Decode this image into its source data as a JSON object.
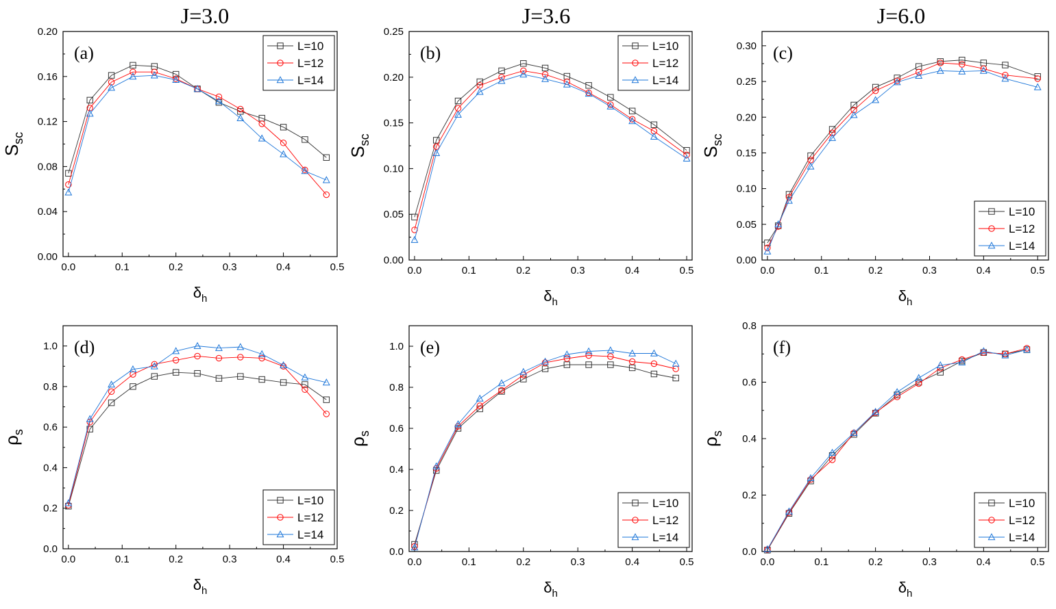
{
  "column_titles": [
    "J=3.0",
    "J=3.6",
    "J=6.0"
  ],
  "colors": {
    "L10": "#333333",
    "L12": "#ff0000",
    "L14": "#1a74d8"
  },
  "chart_data": [
    {
      "type": "line",
      "panel": "(a)",
      "title": "J=3.0",
      "xlabel_main": "δ",
      "xlabel_sub": "h",
      "ylabel_main": "S",
      "ylabel_sub": "sc",
      "xlim": [
        -0.01,
        0.5
      ],
      "ylim": [
        0,
        0.2
      ],
      "xticks": [
        0.0,
        0.1,
        0.2,
        0.3,
        0.4,
        0.5
      ],
      "xtick_labels": [
        "0.0",
        "0.1",
        "0.2",
        "0.3",
        "0.4",
        "0.5"
      ],
      "yticks": [
        0,
        0.04,
        0.08,
        0.12,
        0.16,
        0.2
      ],
      "ytick_labels": [
        "0.00",
        "0.04",
        "0.08",
        "0.12",
        "0.16",
        "0.20"
      ],
      "legend_position": "top-right",
      "x": [
        0.0,
        0.04,
        0.08,
        0.12,
        0.16,
        0.2,
        0.24,
        0.28,
        0.32,
        0.36,
        0.4,
        0.44,
        0.48
      ],
      "series": [
        {
          "name": "L=10",
          "marker": "square",
          "values": [
            0.074,
            0.139,
            0.161,
            0.17,
            0.169,
            0.162,
            0.149,
            0.137,
            0.129,
            0.123,
            0.115,
            0.104,
            0.088
          ]
        },
        {
          "name": "L=12",
          "marker": "circle",
          "values": [
            0.064,
            0.132,
            0.155,
            0.164,
            0.164,
            0.158,
            0.149,
            0.142,
            0.131,
            0.118,
            0.101,
            0.077,
            0.055
          ]
        },
        {
          "name": "L=14",
          "marker": "triangle",
          "values": [
            0.057,
            0.127,
            0.15,
            0.16,
            0.161,
            0.157,
            0.149,
            0.138,
            0.123,
            0.105,
            0.091,
            0.076,
            0.068
          ]
        }
      ]
    },
    {
      "type": "line",
      "panel": "(b)",
      "title": "J=3.6",
      "xlabel_main": "δ",
      "xlabel_sub": "h",
      "ylabel_main": "S",
      "ylabel_sub": "sc",
      "xlim": [
        -0.01,
        0.51
      ],
      "ylim": [
        0,
        0.25
      ],
      "xticks": [
        0.0,
        0.1,
        0.2,
        0.3,
        0.4,
        0.5
      ],
      "xtick_labels": [
        "0.0",
        "0.1",
        "0.2",
        "0.3",
        "0.4",
        "0.5"
      ],
      "yticks": [
        0,
        0.05,
        0.1,
        0.15,
        0.2,
        0.25
      ],
      "ytick_labels": [
        "0.00",
        "0.05",
        "0.10",
        "0.15",
        "0.20",
        "0.25"
      ],
      "legend_position": "top-right",
      "x": [
        0.0,
        0.04,
        0.08,
        0.12,
        0.16,
        0.2,
        0.24,
        0.28,
        0.32,
        0.36,
        0.4,
        0.44,
        0.5
      ],
      "series": [
        {
          "name": "L=10",
          "marker": "square",
          "values": [
            0.047,
            0.131,
            0.174,
            0.195,
            0.207,
            0.215,
            0.21,
            0.201,
            0.191,
            0.178,
            0.163,
            0.148,
            0.12
          ]
        },
        {
          "name": "L=12",
          "marker": "circle",
          "values": [
            0.033,
            0.124,
            0.166,
            0.191,
            0.2,
            0.207,
            0.203,
            0.195,
            0.183,
            0.17,
            0.154,
            0.141,
            0.115
          ]
        },
        {
          "name": "L=14",
          "marker": "triangle",
          "values": [
            0.022,
            0.117,
            0.159,
            0.184,
            0.196,
            0.203,
            0.198,
            0.192,
            0.182,
            0.168,
            0.152,
            0.135,
            0.111
          ]
        }
      ]
    },
    {
      "type": "line",
      "panel": "(c)",
      "title": "J=6.0",
      "xlabel_main": "δ",
      "xlabel_sub": "h",
      "ylabel_main": "S",
      "ylabel_sub": "sc",
      "xlim": [
        -0.01,
        0.52
      ],
      "ylim": [
        0,
        0.32
      ],
      "xticks": [
        0.0,
        0.1,
        0.2,
        0.3,
        0.4,
        0.5
      ],
      "xtick_labels": [
        "0.0",
        "0.1",
        "0.2",
        "0.3",
        "0.4",
        "0.5"
      ],
      "yticks": [
        0,
        0.05,
        0.1,
        0.15,
        0.2,
        0.25,
        0.3
      ],
      "ytick_labels": [
        "0.00",
        "0.05",
        "0.10",
        "0.15",
        "0.20",
        "0.25",
        "0.30"
      ],
      "legend_position": "bottom-right",
      "x": [
        0.0,
        0.02,
        0.04,
        0.08,
        0.12,
        0.16,
        0.2,
        0.24,
        0.28,
        0.32,
        0.36,
        0.4,
        0.44,
        0.5
      ],
      "series": [
        {
          "name": "L=10",
          "marker": "square",
          "values": [
            0.024,
            0.048,
            0.092,
            0.146,
            0.183,
            0.217,
            0.242,
            0.255,
            0.271,
            0.278,
            0.28,
            0.276,
            0.273,
            0.257
          ]
        },
        {
          "name": "L=12",
          "marker": "circle",
          "values": [
            0.017,
            0.047,
            0.088,
            0.14,
            0.178,
            0.21,
            0.237,
            0.251,
            0.263,
            0.276,
            0.274,
            0.268,
            0.259,
            0.254
          ]
        },
        {
          "name": "L=14",
          "marker": "triangle",
          "values": [
            0.012,
            0.05,
            0.083,
            0.131,
            0.171,
            0.203,
            0.224,
            0.249,
            0.258,
            0.265,
            0.264,
            0.265,
            0.254,
            0.242
          ]
        }
      ]
    },
    {
      "type": "line",
      "panel": "(d)",
      "xlabel_main": "δ",
      "xlabel_sub": "h",
      "ylabel_main": "ρ",
      "ylabel_sub": "s",
      "xlim": [
        -0.01,
        0.5
      ],
      "ylim": [
        0,
        1.1
      ],
      "xticks": [
        0.0,
        0.1,
        0.2,
        0.3,
        0.4,
        0.5
      ],
      "xtick_labels": [
        "0.0",
        "0.1",
        "0.2",
        "0.3",
        "0.4",
        "0.5"
      ],
      "yticks": [
        0,
        0.2,
        0.4,
        0.6,
        0.8,
        1.0
      ],
      "ytick_labels": [
        "0.0",
        "0.2",
        "0.4",
        "0.6",
        "0.8",
        "1.0"
      ],
      "legend_position": "bottom-right",
      "x": [
        0.0,
        0.04,
        0.08,
        0.12,
        0.16,
        0.2,
        0.24,
        0.28,
        0.32,
        0.36,
        0.4,
        0.44,
        0.48
      ],
      "series": [
        {
          "name": "L=10",
          "marker": "square",
          "values": [
            0.21,
            0.59,
            0.72,
            0.8,
            0.85,
            0.87,
            0.865,
            0.84,
            0.85,
            0.835,
            0.82,
            0.81,
            0.735
          ]
        },
        {
          "name": "L=12",
          "marker": "circle",
          "values": [
            0.215,
            0.625,
            0.775,
            0.86,
            0.91,
            0.93,
            0.95,
            0.94,
            0.945,
            0.94,
            0.9,
            0.785,
            0.665
          ]
        },
        {
          "name": "L=14",
          "marker": "triangle",
          "values": [
            0.225,
            0.64,
            0.81,
            0.885,
            0.9,
            0.975,
            1.0,
            0.99,
            0.995,
            0.96,
            0.905,
            0.845,
            0.82
          ]
        }
      ]
    },
    {
      "type": "line",
      "panel": "(e)",
      "xlabel_main": "δ",
      "xlabel_sub": "h",
      "ylabel_main": "ρ",
      "ylabel_sub": "s",
      "xlim": [
        -0.01,
        0.51
      ],
      "ylim": [
        0,
        1.1
      ],
      "xticks": [
        0.0,
        0.1,
        0.2,
        0.3,
        0.4,
        0.5
      ],
      "xtick_labels": [
        "0.0",
        "0.1",
        "0.2",
        "0.3",
        "0.4",
        "0.5"
      ],
      "yticks": [
        0,
        0.2,
        0.4,
        0.6,
        0.8,
        1.0
      ],
      "ytick_labels": [
        "0.0",
        "0.2",
        "0.4",
        "0.6",
        "0.8",
        "1.0"
      ],
      "legend_position": "bottom-right",
      "x": [
        0.0,
        0.04,
        0.08,
        0.12,
        0.16,
        0.2,
        0.24,
        0.28,
        0.32,
        0.36,
        0.4,
        0.44,
        0.48
      ],
      "series": [
        {
          "name": "L=10",
          "marker": "square",
          "values": [
            0.035,
            0.395,
            0.6,
            0.695,
            0.78,
            0.84,
            0.89,
            0.91,
            0.91,
            0.91,
            0.895,
            0.865,
            0.845
          ]
        },
        {
          "name": "L=12",
          "marker": "circle",
          "values": [
            0.025,
            0.405,
            0.61,
            0.71,
            0.785,
            0.86,
            0.92,
            0.94,
            0.955,
            0.95,
            0.925,
            0.915,
            0.89
          ]
        },
        {
          "name": "L=14",
          "marker": "triangle",
          "values": [
            0.02,
            0.415,
            0.62,
            0.745,
            0.82,
            0.875,
            0.925,
            0.96,
            0.975,
            0.98,
            0.965,
            0.965,
            0.915
          ]
        }
      ]
    },
    {
      "type": "line",
      "panel": "(f)",
      "xlabel_main": "δ",
      "xlabel_sub": "h",
      "ylabel_main": "ρ",
      "ylabel_sub": "s",
      "xlim": [
        -0.01,
        0.52
      ],
      "ylim": [
        0,
        0.8
      ],
      "xticks": [
        0.0,
        0.1,
        0.2,
        0.3,
        0.4,
        0.5
      ],
      "xtick_labels": [
        "0.0",
        "0.1",
        "0.2",
        "0.3",
        "0.4",
        "0.5"
      ],
      "yticks": [
        0,
        0.2,
        0.4,
        0.6,
        0.8
      ],
      "ytick_labels": [
        "0.0",
        "0.2",
        "0.4",
        "0.6",
        "0.8"
      ],
      "legend_position": "bottom-right",
      "x": [
        0.0,
        0.04,
        0.08,
        0.12,
        0.16,
        0.2,
        0.24,
        0.28,
        0.32,
        0.36,
        0.4,
        0.44,
        0.48
      ],
      "series": [
        {
          "name": "L=10",
          "marker": "square",
          "values": [
            0.005,
            0.135,
            0.25,
            0.34,
            0.415,
            0.49,
            0.555,
            0.6,
            0.635,
            0.675,
            0.705,
            0.7,
            0.715
          ]
        },
        {
          "name": "L=12",
          "marker": "circle",
          "values": [
            0.007,
            0.138,
            0.255,
            0.325,
            0.42,
            0.492,
            0.548,
            0.595,
            0.65,
            0.68,
            0.705,
            0.7,
            0.72
          ]
        },
        {
          "name": "L=14",
          "marker": "triangle",
          "values": [
            0.008,
            0.142,
            0.26,
            0.35,
            0.42,
            0.495,
            0.565,
            0.615,
            0.66,
            0.67,
            0.71,
            0.695,
            0.715
          ]
        }
      ]
    }
  ]
}
